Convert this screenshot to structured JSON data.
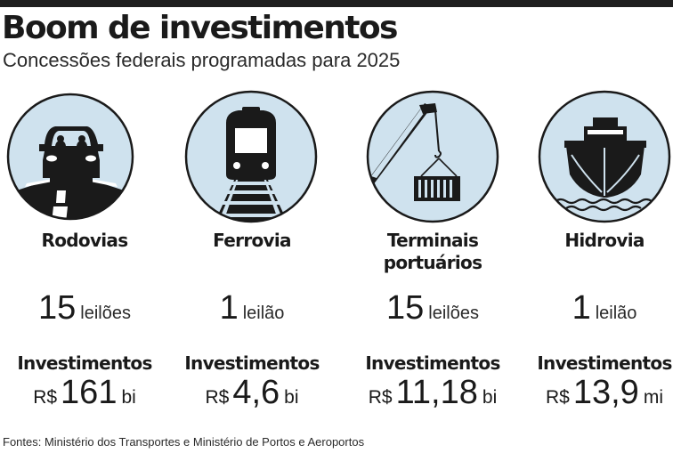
{
  "header": {
    "title": "Boom de investimentos",
    "subtitle": "Concessões federais programadas para 2025"
  },
  "colors": {
    "circle_fill": "#cfe2ee",
    "ink": "#1a1a1a"
  },
  "categories": [
    {
      "name": "Rodovias",
      "icon": "car-icon",
      "count": "15",
      "count_unit": "leilões",
      "invest_label": "Investimentos",
      "currency": "R$",
      "value": "161",
      "suffix": "bi"
    },
    {
      "name": "Ferrovia",
      "icon": "train-icon",
      "count": "1",
      "count_unit": "leilão",
      "invest_label": "Investimentos",
      "currency": "R$",
      "value": "4,6",
      "suffix": "bi"
    },
    {
      "name": "Terminais portuários",
      "icon": "crane-container-icon",
      "count": "15",
      "count_unit": "leilões",
      "invest_label": "Investimentos",
      "currency": "R$",
      "value": "11,18",
      "suffix": "bi"
    },
    {
      "name": "Hidrovia",
      "icon": "ship-icon",
      "count": "1",
      "count_unit": "leilão",
      "invest_label": "Investimentos",
      "currency": "R$",
      "value": "13,9",
      "suffix": "mi"
    }
  ],
  "footer": {
    "source": "Fontes: Ministério dos Transportes e Ministério de Portos e Aeroportos"
  }
}
